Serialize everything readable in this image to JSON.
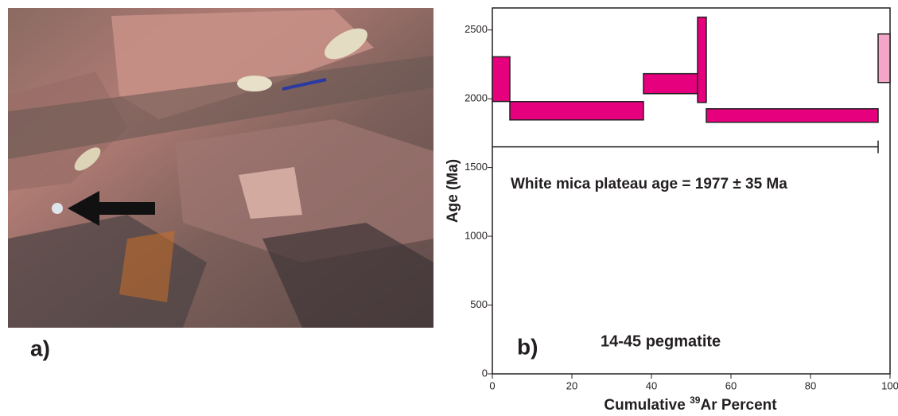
{
  "chart_data": {
    "type": "age_spectrum",
    "panel_a_label": "a)",
    "panel_b_label": "b)",
    "sample_label": "14-45  pegmatite",
    "annotation": "White mica plateau age = 1977 ± 35  Ma",
    "ylabel": "Age (Ma)",
    "xlabel": {
      "prefix": "Cumulative ",
      "sup": "39",
      "suffix": "Ar Percent"
    },
    "xlim": [
      0,
      100
    ],
    "xticks": [
      0,
      20,
      40,
      60,
      80,
      100
    ],
    "ylim": [
      0,
      2660
    ],
    "yticks": [
      0,
      500,
      1000,
      1500,
      2000,
      2500
    ],
    "steps": [
      {
        "x0": 0,
        "x1": 4.4,
        "low": 1980,
        "high": 2305,
        "color": "#e6007e"
      },
      {
        "x0": 4.4,
        "x1": 38,
        "low": 1846,
        "high": 1979,
        "color": "#e6007e"
      },
      {
        "x0": 38,
        "x1": 51.6,
        "low": 2037,
        "high": 2182,
        "color": "#e6007e"
      },
      {
        "x0": 51.6,
        "x1": 53.8,
        "low": 1973,
        "high": 2593,
        "color": "#e6007e"
      },
      {
        "x0": 53.8,
        "x1": 97,
        "low": 1829,
        "high": 1927,
        "color": "#e6007e"
      },
      {
        "x0": 97,
        "x1": 100,
        "low": 2118,
        "high": 2471,
        "color": "#f4a6c8"
      }
    ],
    "plateau_bar": {
      "x0": 0,
      "x1": 97,
      "age": 1650
    }
  }
}
